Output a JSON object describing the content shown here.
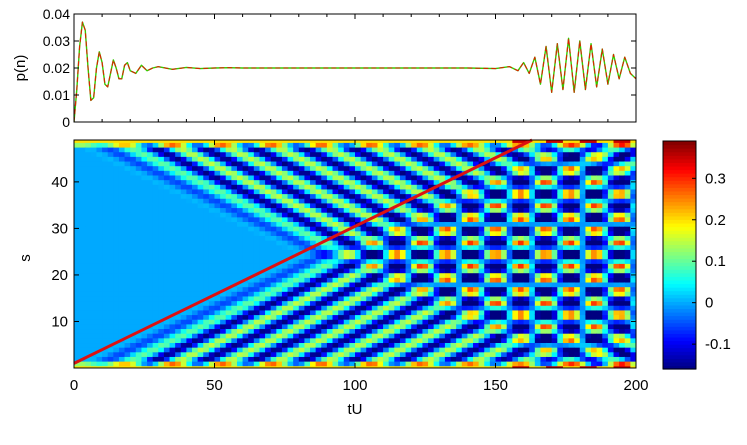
{
  "chart_data": [
    {
      "type": "line",
      "ylabel": "p(n)",
      "xlim": [
        0,
        200
      ],
      "ylim": [
        0,
        0.04
      ],
      "yticks": [
        "0",
        "0.01",
        "0.02",
        "0.03",
        "0.04"
      ],
      "grid": false,
      "series": [
        {
          "color": "#33cc00",
          "style": "solid",
          "x": [
            0,
            1,
            2,
            3,
            4,
            5,
            6,
            7,
            8,
            9,
            10,
            11,
            12,
            13,
            14,
            15,
            16,
            17,
            18,
            19,
            20,
            22,
            24,
            26,
            28,
            30,
            35,
            40,
            45,
            50,
            55,
            60,
            80,
            100,
            120,
            140,
            150,
            155,
            158,
            160,
            162,
            164,
            166,
            168,
            170,
            172,
            174,
            176,
            178,
            180,
            182,
            184,
            186,
            188,
            190,
            192,
            194,
            196,
            198,
            200
          ],
          "values": [
            0.0,
            0.012,
            0.028,
            0.037,
            0.034,
            0.02,
            0.008,
            0.009,
            0.02,
            0.026,
            0.022,
            0.014,
            0.013,
            0.018,
            0.023,
            0.02,
            0.016,
            0.016,
            0.021,
            0.022,
            0.019,
            0.018,
            0.021,
            0.019,
            0.02,
            0.0205,
            0.0195,
            0.0202,
            0.0198,
            0.02,
            0.0201,
            0.02,
            0.02,
            0.02,
            0.02,
            0.02,
            0.0198,
            0.0205,
            0.019,
            0.022,
            0.018,
            0.024,
            0.014,
            0.028,
            0.011,
            0.029,
            0.012,
            0.031,
            0.011,
            0.03,
            0.012,
            0.029,
            0.013,
            0.027,
            0.014,
            0.025,
            0.016,
            0.024,
            0.018,
            0.016
          ]
        },
        {
          "color": "#dd2200",
          "style": "dashed",
          "x": [
            0,
            1,
            2,
            3,
            4,
            5,
            6,
            7,
            8,
            9,
            10,
            11,
            12,
            13,
            14,
            15,
            16,
            17,
            18,
            19,
            20,
            22,
            24,
            26,
            28,
            30,
            35,
            40,
            45,
            50,
            55,
            60,
            80,
            100,
            120,
            140,
            150,
            155,
            158,
            160,
            162,
            164,
            166,
            168,
            170,
            172,
            174,
            176,
            178,
            180,
            182,
            184,
            186,
            188,
            190,
            192,
            194,
            196,
            198,
            200
          ],
          "values": [
            0.0,
            0.012,
            0.028,
            0.037,
            0.034,
            0.02,
            0.008,
            0.009,
            0.02,
            0.026,
            0.022,
            0.014,
            0.013,
            0.018,
            0.023,
            0.02,
            0.016,
            0.016,
            0.021,
            0.022,
            0.019,
            0.018,
            0.021,
            0.019,
            0.02,
            0.0205,
            0.0195,
            0.0202,
            0.0198,
            0.02,
            0.0201,
            0.02,
            0.02,
            0.02,
            0.02,
            0.02,
            0.0198,
            0.0205,
            0.019,
            0.022,
            0.018,
            0.024,
            0.014,
            0.028,
            0.011,
            0.029,
            0.012,
            0.031,
            0.011,
            0.03,
            0.012,
            0.029,
            0.013,
            0.027,
            0.014,
            0.025,
            0.016,
            0.024,
            0.018,
            0.016
          ]
        }
      ]
    },
    {
      "type": "heatmap",
      "xlabel": "tU",
      "ylabel": "s",
      "xlim": [
        0,
        200
      ],
      "ylim": [
        0,
        49
      ],
      "xticks": [
        "0",
        "50",
        "100",
        "150",
        "200"
      ],
      "yticks": [
        "10",
        "20",
        "30",
        "40"
      ],
      "grid": false,
      "colormap": "jet",
      "background_value": 0.0,
      "color_range": [
        -0.16,
        0.39
      ],
      "colorbar_ticks": [
        "-0.1",
        "0",
        "0.1",
        "0.2",
        "0.3"
      ],
      "features": {
        "edge_rows_value": 0.2,
        "wave_band_slopes_per_tU": [
          0.295,
          -0.295
        ],
        "wave_values": [
          -0.1,
          0.15
        ]
      },
      "overlay_line": {
        "color": "#dd1111",
        "x": [
          0,
          163
        ],
        "y": [
          1,
          49
        ]
      }
    }
  ]
}
